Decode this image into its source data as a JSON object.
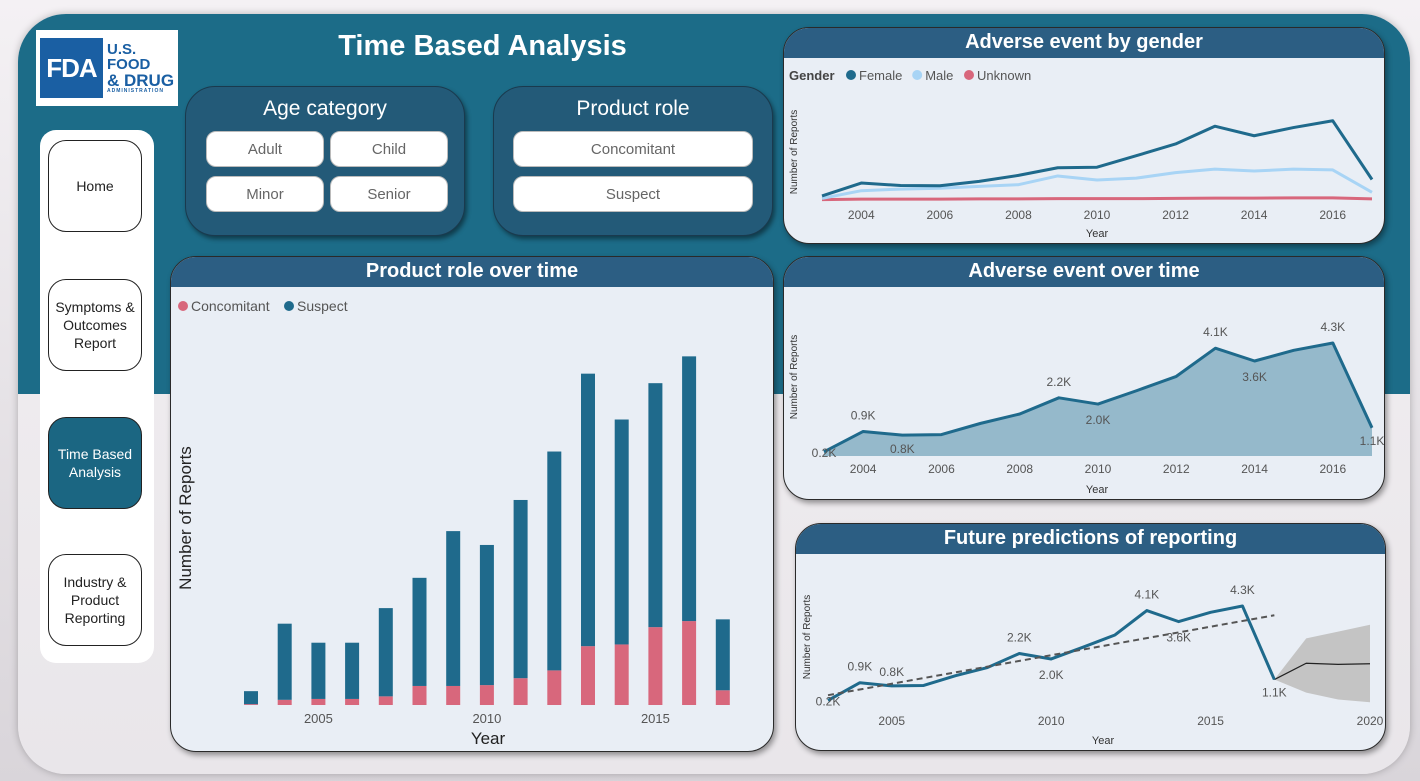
{
  "logo": {
    "mark": "FDA",
    "line1": "U.S. FOOD",
    "line2": "& DRUG",
    "line3": "ADMINISTRATION"
  },
  "page_title": "Time Based Analysis",
  "slicers": {
    "age": {
      "title": "Age category",
      "options": [
        "Adult",
        "Child",
        "Minor",
        "Senior"
      ]
    },
    "role": {
      "title": "Product role",
      "options": [
        "Concomitant",
        "Suspect"
      ]
    }
  },
  "nav": {
    "items": [
      {
        "label": "Home",
        "active": false
      },
      {
        "label": "Symptoms & Outcomes Report",
        "active": true
      },
      {
        "label": "Time Based Analysis",
        "active": true
      },
      {
        "label": "Industry & Product Reporting",
        "active": false
      }
    ]
  },
  "colors": {
    "frame": "#1c6c88",
    "suspect": "#1f6a8c",
    "concomitant": "#d8677c",
    "male": "#a8d4f5",
    "header": "#2c5e83"
  },
  "chart_data": [
    {
      "type": "line",
      "title": "Adverse event by gender",
      "legend_title": "Gender",
      "xlabel": "Year",
      "ylabel": "Number of Reports",
      "x_ticks": [
        "2004",
        "2006",
        "2008",
        "2010",
        "2012",
        "2014",
        "2016"
      ],
      "x": [
        2003,
        2004,
        2005,
        2006,
        2007,
        2008,
        2009,
        2010,
        2011,
        2012,
        2013,
        2014,
        2015,
        2016,
        2017
      ],
      "series": [
        {
          "name": "Female",
          "values": [
            150,
            620,
            530,
            520,
            680,
            900,
            1180,
            1200,
            1620,
            2050,
            2700,
            2350,
            2650,
            2900,
            750
          ]
        },
        {
          "name": "Male",
          "values": [
            60,
            340,
            400,
            430,
            500,
            560,
            880,
            730,
            800,
            1000,
            1130,
            1060,
            1130,
            1100,
            280
          ]
        },
        {
          "name": "Unknown",
          "values": [
            15,
            30,
            30,
            30,
            40,
            40,
            50,
            50,
            50,
            60,
            70,
            70,
            80,
            80,
            40
          ]
        }
      ],
      "legend": "top-left"
    },
    {
      "type": "bar",
      "title": "Product role over time",
      "xlabel": "Year",
      "ylabel": "Number of Reports",
      "x_ticks": [
        "2005",
        "2010",
        "2015"
      ],
      "categories": [
        "2003",
        "2004",
        "2005",
        "2006",
        "2007",
        "2008",
        "2009",
        "2010",
        "2011",
        "2012",
        "2013",
        "2014",
        "2015",
        "2016",
        "2017"
      ],
      "series": [
        {
          "name": "Concomitant",
          "values": [
            10,
            60,
            70,
            70,
            100,
            220,
            220,
            230,
            310,
            400,
            680,
            700,
            900,
            970,
            170
          ]
        },
        {
          "name": "Suspect",
          "values": [
            150,
            880,
            650,
            650,
            1020,
            1250,
            1790,
            1620,
            2060,
            2530,
            3150,
            2600,
            2820,
            3060,
            820
          ]
        }
      ],
      "stacked": true,
      "legend": "top-left"
    },
    {
      "type": "area",
      "title": "Adverse event over time",
      "xlabel": "Year",
      "ylabel": "Number of Reports",
      "x_ticks": [
        "2004",
        "2006",
        "2008",
        "2010",
        "2012",
        "2014",
        "2016"
      ],
      "x": [
        2003,
        2004,
        2005,
        2006,
        2007,
        2008,
        2009,
        2010,
        2011,
        2012,
        2013,
        2014,
        2015,
        2016,
        2017
      ],
      "values": [
        160,
        940,
        800,
        820,
        1250,
        1610,
        2230,
        1990,
        2510,
        3050,
        4130,
        3640,
        4050,
        4330,
        1080
      ],
      "data_labels": [
        {
          "x": 2003,
          "text": "0.2K"
        },
        {
          "x": 2004,
          "text": "0.9K"
        },
        {
          "x": 2005,
          "text": "0.8K"
        },
        {
          "x": 2009,
          "text": "2.2K"
        },
        {
          "x": 2010,
          "text": "2.0K"
        },
        {
          "x": 2013,
          "text": "4.1K"
        },
        {
          "x": 2014,
          "text": "3.6K"
        },
        {
          "x": 2016,
          "text": "4.3K"
        },
        {
          "x": 2017,
          "text": "1.1K"
        }
      ]
    },
    {
      "type": "line",
      "title": "Future predictions of reporting",
      "xlabel": "Year",
      "ylabel": "Number of Reports",
      "x_ticks": [
        "2005",
        "2010",
        "2015",
        "2020"
      ],
      "x": [
        2003,
        2004,
        2005,
        2006,
        2007,
        2008,
        2009,
        2010,
        2011,
        2012,
        2013,
        2014,
        2015,
        2016,
        2017
      ],
      "values": [
        160,
        940,
        800,
        820,
        1250,
        1610,
        2230,
        1990,
        2510,
        3050,
        4130,
        3640,
        4050,
        4330,
        1080
      ],
      "data_labels": [
        {
          "x": 2003,
          "text": "0.2K"
        },
        {
          "x": 2004,
          "text": "0.9K"
        },
        {
          "x": 2005,
          "text": "0.8K"
        },
        {
          "x": 2009,
          "text": "2.2K"
        },
        {
          "x": 2010,
          "text": "2.0K"
        },
        {
          "x": 2013,
          "text": "4.1K"
        },
        {
          "x": 2014,
          "text": "3.6K"
        },
        {
          "x": 2016,
          "text": "4.3K"
        },
        {
          "x": 2017,
          "text": "1.1K"
        }
      ],
      "trend": {
        "x": [
          2003,
          2017
        ],
        "values": [
          390,
          3920
        ]
      },
      "forecast": {
        "x": [
          2017,
          2018,
          2019,
          2020
        ],
        "values": [
          1080,
          1800,
          1750,
          1780
        ],
        "lower": [
          1080,
          500,
          200,
          80
        ],
        "upper": [
          1080,
          2900,
          3200,
          3500
        ]
      }
    }
  ]
}
